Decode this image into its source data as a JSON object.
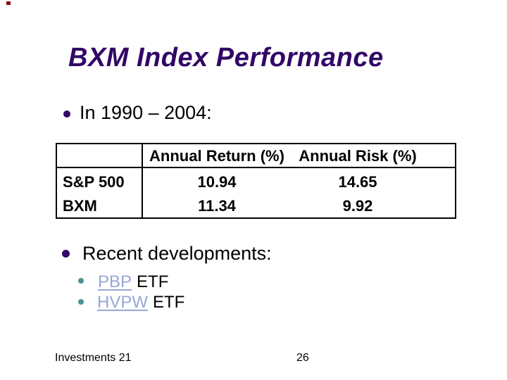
{
  "title": "BXM Index Performance",
  "bullets": {
    "period": "In 1990 – 2004:",
    "recent": "Recent developments:"
  },
  "table": {
    "headers": {
      "return": "Annual Return (%)",
      "risk": "Annual Risk (%)"
    },
    "rows": [
      {
        "label": "S&P 500",
        "annual_return": "10.94",
        "annual_risk": "14.65"
      },
      {
        "label": "BXM",
        "annual_return": "11.34",
        "annual_risk": "9.92"
      }
    ]
  },
  "sub_bullets": [
    {
      "link": "PBP",
      "rest": "ETF"
    },
    {
      "link": "HVPW",
      "rest": "ETF"
    }
  ],
  "footer": {
    "course": "Investments 21",
    "slide_number": "26"
  },
  "colors": {
    "title": "#310866",
    "bullet_dot": "#33076B",
    "sub_bullet_dot": "#4E9292",
    "hyperlink": "#98A7D4",
    "body_text": "#000000",
    "table_border": "#000000",
    "corner_mark": "#8B0000",
    "background": "#FFFFFF"
  }
}
